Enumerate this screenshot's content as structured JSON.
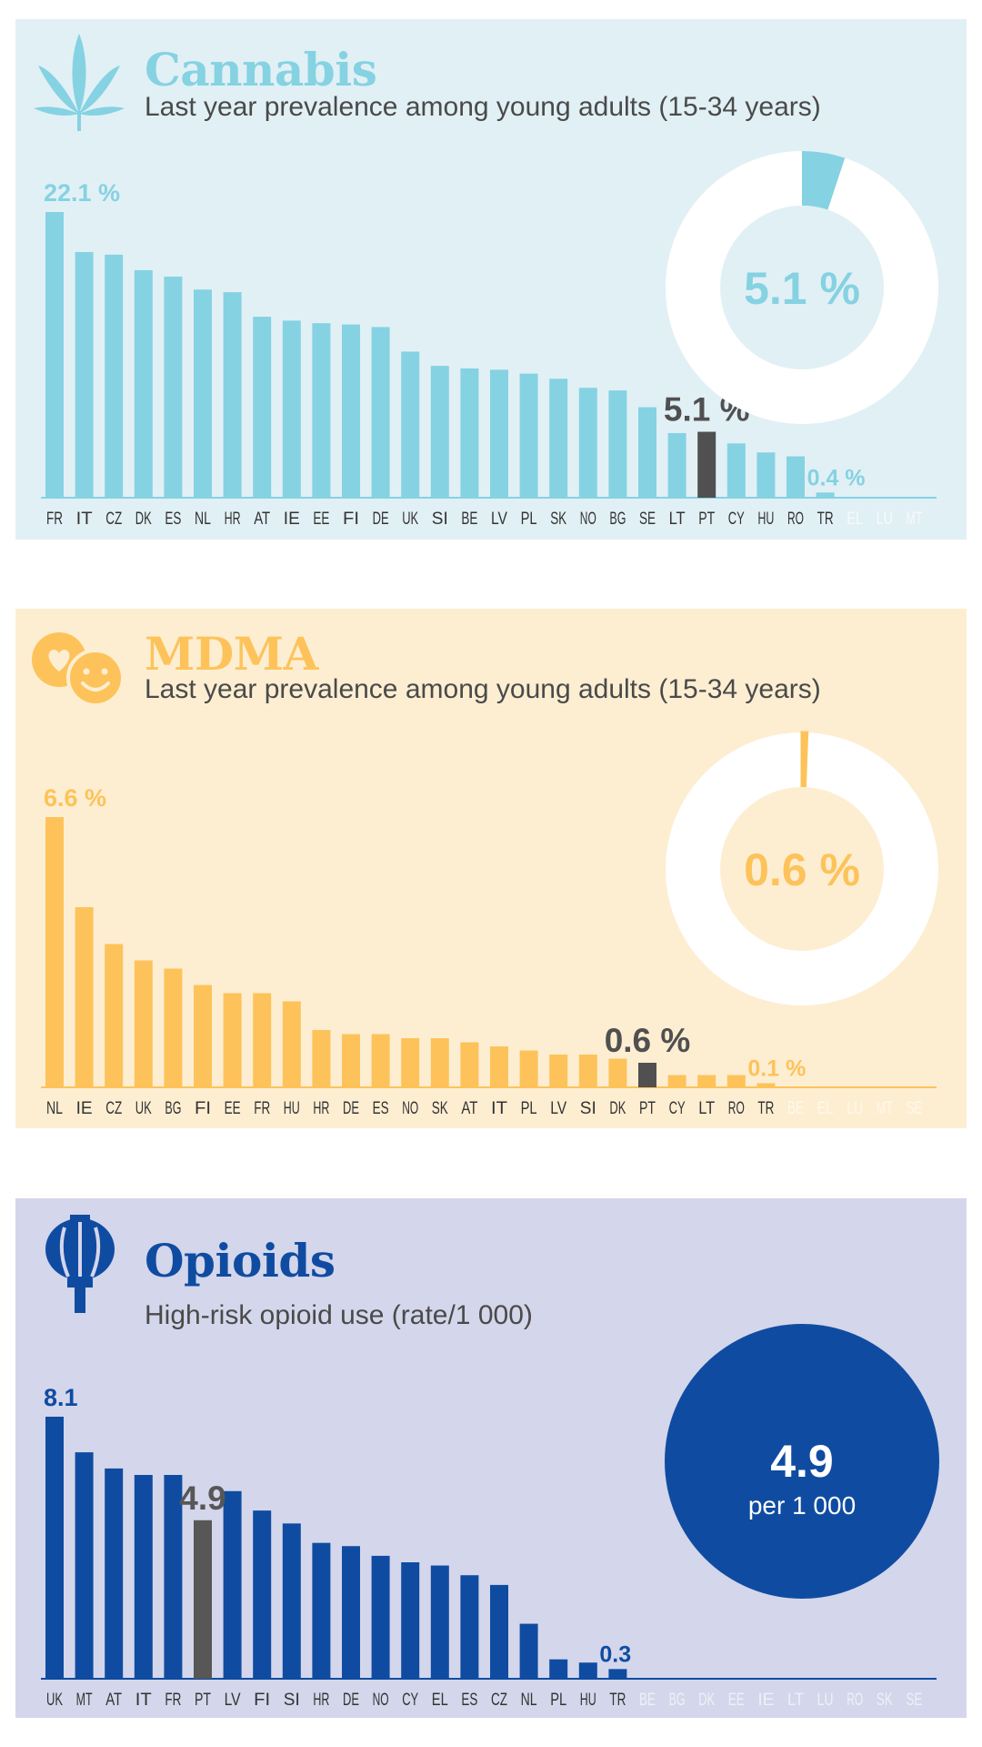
{
  "chart_data": [
    {
      "type": "bar",
      "title": "Cannabis",
      "subtitle": "Last year prevalence among young adults (15-34 years)",
      "unit": "%",
      "categories": [
        "FR",
        "IT",
        "CZ",
        "DK",
        "ES",
        "NL",
        "HR",
        "AT",
        "IE",
        "EE",
        "FI",
        "DE",
        "UK",
        "SI",
        "BE",
        "LV",
        "PL",
        "SK",
        "NO",
        "BG",
        "SE",
        "LT",
        "PT",
        "CY",
        "HU",
        "RO",
        "TR",
        "EL",
        "LU",
        "MT"
      ],
      "values": [
        22.1,
        19.0,
        18.8,
        17.6,
        17.1,
        16.1,
        15.9,
        14.0,
        13.7,
        13.5,
        13.4,
        13.2,
        11.3,
        10.2,
        10.0,
        9.9,
        9.6,
        9.2,
        8.5,
        8.3,
        7.0,
        5.0,
        5.1,
        4.2,
        3.5,
        3.2,
        0.4,
        null,
        null,
        null
      ],
      "highlight": "PT",
      "max_label": "22.1 %",
      "min_label": "0.4 %",
      "highlight_label": "5.1 %",
      "donut_label": "5.1 %",
      "donut_value": 5.1,
      "ylim": [
        0,
        22.1
      ],
      "colors": {
        "bg": "#e1f0f5",
        "bar": "#85d2e2",
        "highlight": "#505050",
        "nodata": "#f5fafc"
      }
    },
    {
      "type": "bar",
      "title": "MDMA",
      "subtitle": "Last year prevalence among young adults (15-34 years)",
      "unit": "%",
      "categories": [
        "NL",
        "IE",
        "CZ",
        "UK",
        "BG",
        "FI",
        "EE",
        "FR",
        "HU",
        "HR",
        "DE",
        "ES",
        "NO",
        "SK",
        "AT",
        "IT",
        "PL",
        "LV",
        "SI",
        "DK",
        "PT",
        "CY",
        "LT",
        "RO",
        "TR",
        "BE",
        "EL",
        "LU",
        "MT",
        "SE"
      ],
      "values": [
        6.6,
        4.4,
        3.5,
        3.1,
        2.9,
        2.5,
        2.3,
        2.3,
        2.1,
        1.4,
        1.3,
        1.3,
        1.2,
        1.2,
        1.1,
        1.0,
        0.9,
        0.8,
        0.8,
        0.7,
        0.6,
        0.3,
        0.3,
        0.3,
        0.1,
        null,
        null,
        null,
        null,
        null
      ],
      "highlight": "PT",
      "max_label": "6.6 %",
      "min_label": "0.1 %",
      "highlight_label": "0.6 %",
      "donut_label": "0.6 %",
      "donut_value": 0.6,
      "ylim": [
        0,
        6.6
      ],
      "colors": {
        "bg": "#fdeed2",
        "bar": "#fdc35a",
        "highlight": "#505050",
        "nodata": "#fff8ea"
      }
    },
    {
      "type": "bar",
      "title": "Opioids",
      "subtitle": "High-risk opioid use (rate/1 000)",
      "unit": "",
      "categories": [
        "UK",
        "MT",
        "AT",
        "IT",
        "FR",
        "PT",
        "LV",
        "FI",
        "SI",
        "HR",
        "DE",
        "NO",
        "CY",
        "EL",
        "ES",
        "CZ",
        "NL",
        "PL",
        "HU",
        "TR",
        "BE",
        "BG",
        "DK",
        "EE",
        "IE",
        "LT",
        "LU",
        "RO",
        "SK",
        "SE"
      ],
      "values": [
        8.1,
        7.0,
        6.5,
        6.3,
        6.3,
        4.9,
        5.8,
        5.2,
        4.8,
        4.2,
        4.1,
        3.8,
        3.6,
        3.5,
        3.2,
        2.9,
        1.7,
        0.6,
        0.5,
        0.3,
        null,
        null,
        null,
        null,
        null,
        null,
        null,
        null,
        null,
        null
      ],
      "highlight": "PT",
      "max_label": "8.1",
      "min_label": "0.3",
      "highlight_label": "4.9",
      "circle_value": "4.9",
      "circle_unit": "per 1 000",
      "ylim": [
        0,
        8.1
      ],
      "colors": {
        "bg": "#d4d6eb",
        "bar": "#0f4ca1",
        "highlight": "#575757",
        "nodata": "#eef0f8"
      }
    }
  ]
}
